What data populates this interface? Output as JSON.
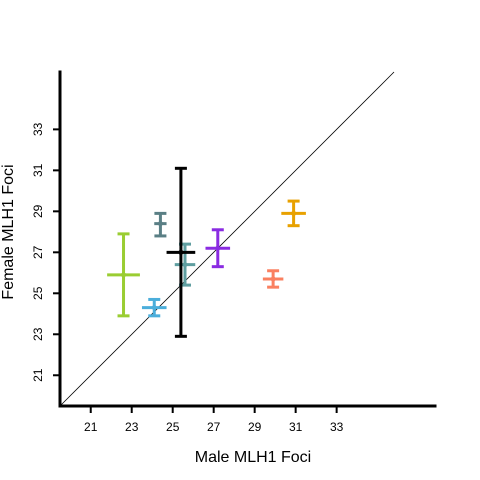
{
  "chart_data": {
    "type": "scatter",
    "title": "",
    "xlabel": "Male MLH1 Foci",
    "ylabel": "Female MLH1 Foci",
    "xlim": [
      19.5,
      37.8
    ],
    "ylim": [
      19.5,
      35.8
    ],
    "xticks": [
      21,
      23,
      25,
      27,
      29,
      31,
      33
    ],
    "yticks": [
      21,
      23,
      25,
      27,
      29,
      31,
      33
    ],
    "grid": false,
    "reference_line": "y = x",
    "points": [
      {
        "x": 22.6,
        "y": 25.9,
        "x_err": 0.8,
        "y_err_low": 2.0,
        "y_err_high": 2.0,
        "color": "#9ACD32"
      },
      {
        "x": 24.1,
        "y": 24.3,
        "x_err": 0.6,
        "y_err_low": 0.4,
        "y_err_high": 0.4,
        "color": "#4BAEDB"
      },
      {
        "x": 24.4,
        "y": 28.4,
        "x_err": 0.3,
        "y_err_low": 0.6,
        "y_err_high": 0.5,
        "color": "#5A7F85"
      },
      {
        "x": 25.6,
        "y": 26.4,
        "x_err": 0.5,
        "y_err_low": 1.0,
        "y_err_high": 1.0,
        "color": "#5F9EA0"
      },
      {
        "x": 25.4,
        "y": 27.0,
        "x_err": 0.7,
        "y_err_low": 4.1,
        "y_err_high": 4.1,
        "color": "#000000"
      },
      {
        "x": 27.2,
        "y": 27.2,
        "x_err": 0.6,
        "y_err_low": 0.9,
        "y_err_high": 0.9,
        "color": "#8A2BE2"
      },
      {
        "x": 29.9,
        "y": 25.7,
        "x_err": 0.5,
        "y_err_low": 0.4,
        "y_err_high": 0.4,
        "color": "#FA8060"
      },
      {
        "x": 30.9,
        "y": 28.9,
        "x_err": 0.6,
        "y_err_low": 0.6,
        "y_err_high": 0.6,
        "color": "#E8A100"
      }
    ]
  }
}
